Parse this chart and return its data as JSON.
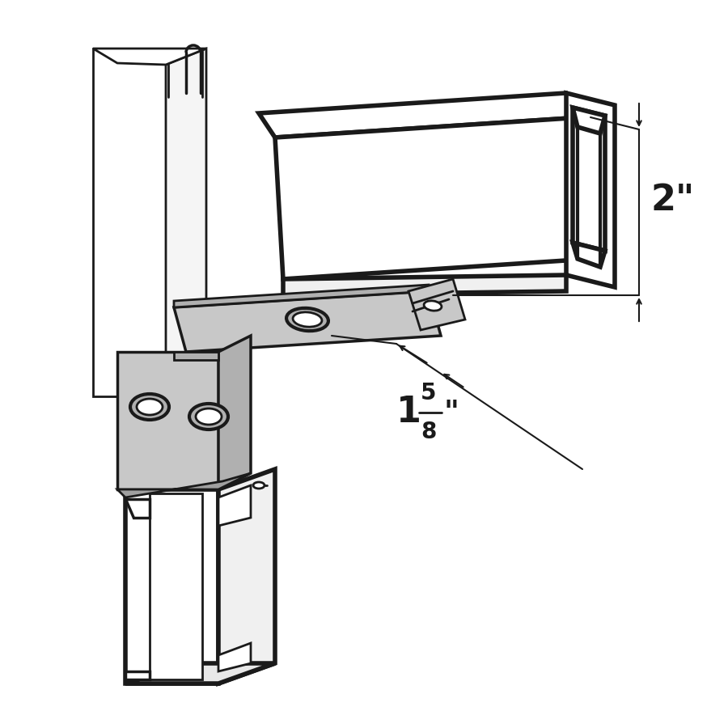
{
  "bg_color": "#ffffff",
  "line_color": "#1a1a1a",
  "gray_fill": "#c8c8c8",
  "gray_side": "#b0b0b0",
  "thick_lw": 4.0,
  "thin_lw": 2.0,
  "dim_lw": 1.5,
  "dim_2in": "2\"",
  "dim_158_whole": "1",
  "dim_158_num": "5",
  "dim_158_den": "8",
  "dim_158_unit": "\""
}
